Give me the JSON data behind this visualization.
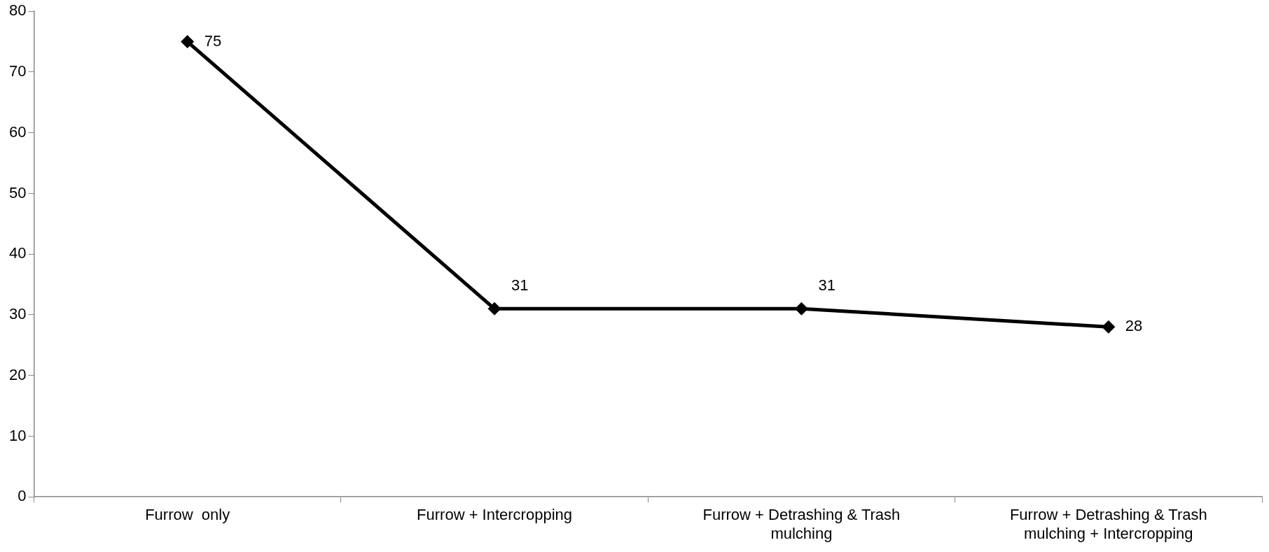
{
  "chart_data": {
    "type": "line",
    "categories": [
      "Furrow  only",
      "Furrow + Intercropping",
      "Furrow + Detrashing & Trash mulching",
      "Furrow + Detrashing & Trash mulching + Intercropping"
    ],
    "series": [
      {
        "color": "#000000",
        "values": [
          75,
          31,
          31,
          28
        ]
      }
    ],
    "ylim": [
      0,
      80
    ],
    "yticks": [
      0,
      10,
      20,
      30,
      40,
      50,
      60,
      70,
      80
    ],
    "grid": false,
    "legend": false,
    "marker": "diamond",
    "line_style": "solid",
    "data_labels": true
  }
}
